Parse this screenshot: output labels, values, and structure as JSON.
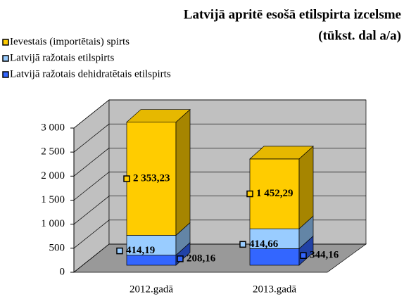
{
  "chart_data": {
    "type": "bar3d_stacked",
    "title": "Latvijā apritē esošā etilspirta izcelsme",
    "subtitle": "(tūkst. dal a/a)",
    "categories": [
      "2012.gadā",
      "2013.gadā"
    ],
    "series": [
      {
        "name": "Ievestais (importētais) spirts",
        "color": "#ffcc00",
        "values": [
          2353.23,
          1452.29
        ],
        "value_labels": [
          "2 353,23",
          "1 452,29"
        ]
      },
      {
        "name": "Latvijā ražotais etilspirts",
        "color": "#99ccff",
        "values": [
          414.19,
          414.66
        ],
        "value_labels": [
          "414,19",
          "414,66"
        ]
      },
      {
        "name": "Latvijā ražotais dehidratētais etilspirts",
        "color": "#3366ff",
        "values": [
          208.16,
          344.16
        ],
        "value_labels": [
          "208,16",
          "344,16"
        ]
      }
    ],
    "ylim": [
      0,
      3000
    ],
    "yticks": [
      0,
      500,
      {
        "value": 1000,
        "label": "1 000"
      },
      {
        "value": 1500,
        "label": "1 500"
      },
      {
        "value": 2000,
        "label": "2 000"
      },
      {
        "value": 2500,
        "label": "2 500"
      },
      {
        "value": 3000,
        "label": "3 000"
      }
    ],
    "grid": true,
    "legend": "top-left"
  }
}
